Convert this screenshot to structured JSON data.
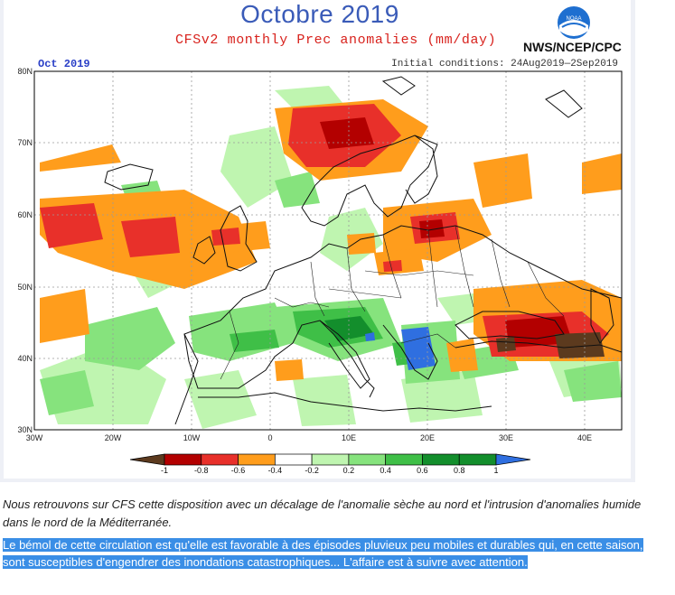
{
  "map": {
    "title": "Octobre 2019",
    "subtitle": "CFSv2 monthly Prec anomalies (mm/day)",
    "agency": "NWS/NCEP/CPC",
    "logo_text": "NOAA",
    "month_tag": "Oct 2019",
    "initial_conditions": "Initial conditions: 24Aug2019—2Sep2019",
    "lat_labels": [
      "80N",
      "70N",
      "60N",
      "50N",
      "40N",
      "30N"
    ],
    "lon_labels": [
      "30W",
      "20W",
      "10W",
      "0",
      "10E",
      "20E",
      "30E",
      "40E"
    ]
  },
  "legend": {
    "ticks": [
      "-1",
      "-0.8",
      "-0.6",
      "-0.4",
      "-0.2",
      "0.2",
      "0.4",
      "0.6",
      "0.8",
      "1"
    ],
    "colors": [
      "#5c3a1e",
      "#b30000",
      "#e8302a",
      "#ff9d1c",
      "#ffffff",
      "#bff5b0",
      "#86e37d",
      "#3fbf47",
      "#138e2c",
      "#2f6fe0"
    ]
  },
  "text": {
    "caption": "Nous retrouvons sur CFS cette disposition avec un décalage de l'anomalie sèche au nord et l'intrusion d'anomalies humide dans le nord de la Méditerranée.",
    "highlight": "Le bémol de cette circulation est qu'elle est favorable à des épisodes pluvieux peu mobiles et durables qui, en cette saison, sont susceptibles d'engendrer des inondations catastrophiques... L'affaire est à suivre avec attention."
  }
}
